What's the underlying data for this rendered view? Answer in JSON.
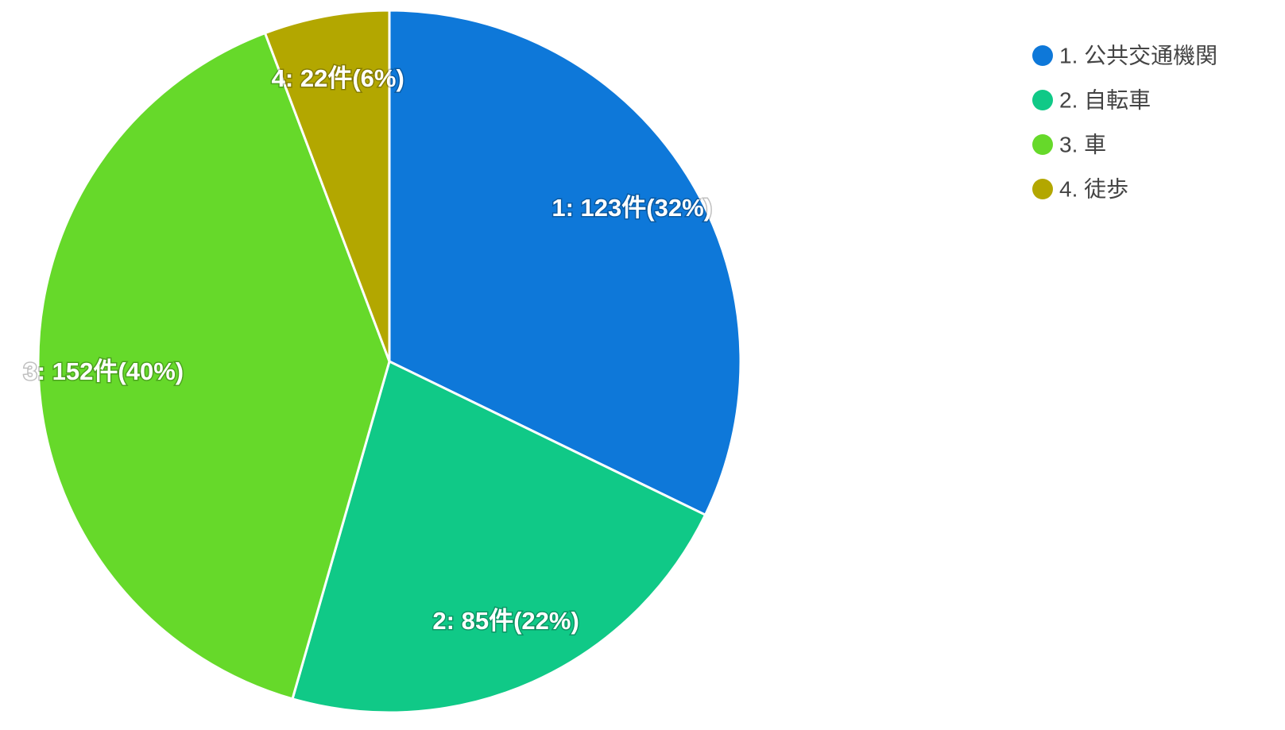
{
  "chart_data": {
    "type": "pie",
    "categories": [
      "1. 公共交通機関",
      "2. 自転車",
      "3. 車",
      "4. 徒歩"
    ],
    "values": [
      123,
      85,
      152,
      22
    ],
    "value_labels": [
      "1: 123件(32%)",
      "2: 85件(22%)",
      "3: 152件(40%)",
      "4: 22件(6%)"
    ],
    "colors": [
      "#0e78d9",
      "#10c987",
      "#66d92a",
      "#b3a700"
    ],
    "legend": "top-right"
  }
}
